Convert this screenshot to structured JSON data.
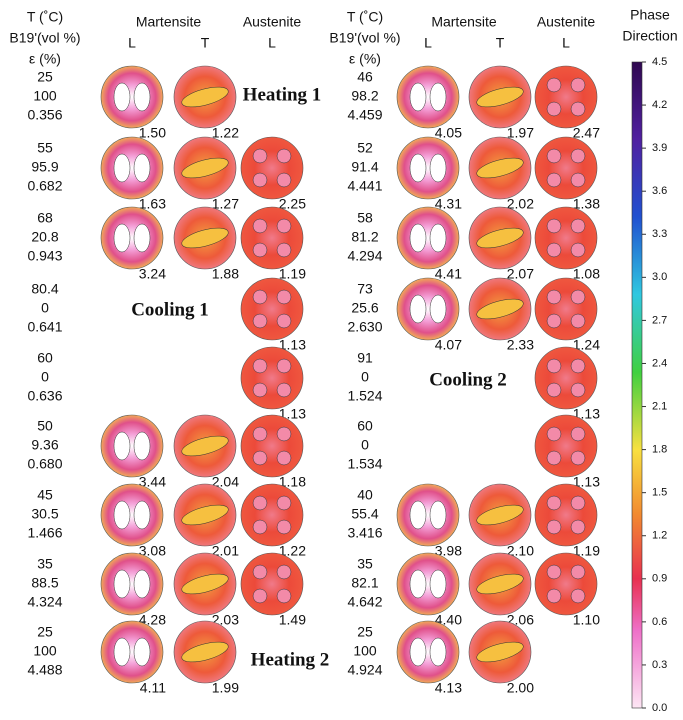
{
  "headers": {
    "params": [
      "T (˚C)",
      "B19'(vol %)",
      "ε (%)"
    ],
    "martensite": "Martensite",
    "austenite": "Austenite",
    "directions": [
      "L",
      "T",
      "L"
    ]
  },
  "left_rows": [
    {
      "params": [
        "25",
        "100",
        "0.356"
      ],
      "martensite_L": "1.50",
      "martensite_T": "1.22"
    },
    {
      "params": [
        "55",
        "95.9",
        "0.682"
      ],
      "martensite_L": "1.63",
      "martensite_T": "1.27",
      "austenite_L": "2.25"
    },
    {
      "params": [
        "68",
        "20.8",
        "0.943"
      ],
      "martensite_L": "3.24",
      "martensite_T": "1.88",
      "austenite_L": "1.19"
    },
    {
      "params": [
        "80.4",
        "0",
        "0.641"
      ],
      "austenite_L": "1.13"
    },
    {
      "params": [
        "60",
        "0",
        "0.636"
      ],
      "austenite_L": "1.13"
    },
    {
      "params": [
        "50",
        "9.36",
        "0.680"
      ],
      "martensite_L": "3.44",
      "martensite_T": "2.04",
      "austenite_L": "1.18"
    },
    {
      "params": [
        "45",
        "30.5",
        "1.466"
      ],
      "martensite_L": "3.08",
      "martensite_T": "2.01",
      "austenite_L": "1.22"
    },
    {
      "params": [
        "35",
        "88.5",
        "4.324"
      ],
      "martensite_L": "4.28",
      "martensite_T": "2.03",
      "austenite_L": "1.49"
    },
    {
      "params": [
        "25",
        "100",
        "4.488"
      ],
      "martensite_L": "4.11",
      "martensite_T": "1.99"
    }
  ],
  "right_rows": [
    {
      "params": [
        "46",
        "98.2",
        "4.459"
      ],
      "martensite_L": "4.05",
      "martensite_T": "1.97",
      "austenite_L": "2.47"
    },
    {
      "params": [
        "52",
        "91.4",
        "4.441"
      ],
      "martensite_L": "4.31",
      "martensite_T": "2.02",
      "austenite_L": "1.38"
    },
    {
      "params": [
        "58",
        "81.2",
        "4.294"
      ],
      "martensite_L": "4.41",
      "martensite_T": "2.07",
      "austenite_L": "1.08"
    },
    {
      "params": [
        "73",
        "25.6",
        "2.630"
      ],
      "martensite_L": "4.07",
      "martensite_T": "2.33",
      "austenite_L": "1.24"
    },
    {
      "params": [
        "91",
        "0",
        "1.524"
      ],
      "austenite_L": "1.13"
    },
    {
      "params": [
        "60",
        "0",
        "1.534"
      ],
      "austenite_L": "1.13"
    },
    {
      "params": [
        "40",
        "55.4",
        "3.416"
      ],
      "martensite_L": "3.98",
      "martensite_T": "2.10",
      "austenite_L": "1.19"
    },
    {
      "params": [
        "35",
        "82.1",
        "4.642"
      ],
      "martensite_L": "4.40",
      "martensite_T": "2.06",
      "austenite_L": "1.10"
    },
    {
      "params": [
        "25",
        "100",
        "4.924"
      ],
      "martensite_L": "4.13",
      "martensite_T": "2.00"
    }
  ],
  "annotations": [
    "Heating 1",
    "Cooling 1",
    "Cooling 2",
    "Heating 2"
  ],
  "colorbar": {
    "title": [
      "Phase",
      "Direction"
    ],
    "ticks": [
      "0.0",
      "0.3",
      "0.6",
      "0.9",
      "1.2",
      "1.5",
      "1.8",
      "2.1",
      "2.4",
      "2.7",
      "3.0",
      "3.3",
      "3.6",
      "3.9",
      "4.2",
      "4.5"
    ]
  }
}
